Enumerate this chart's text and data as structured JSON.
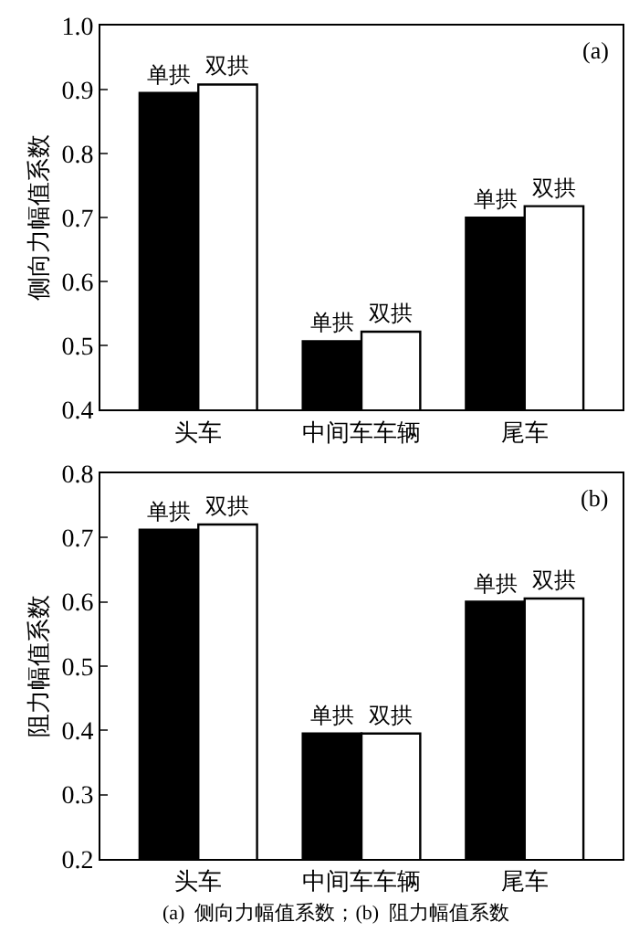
{
  "chart_data": [
    {
      "type": "bar",
      "ylabel": "侧向力幅值系数",
      "categories": [
        "头车",
        "中间车车辆",
        "尾车"
      ],
      "ylim": [
        0.4,
        1.0
      ],
      "yticks": [
        0.4,
        0.5,
        0.6,
        0.7,
        0.8,
        0.9,
        {
          "value": 1.0,
          "label": "1.0"
        }
      ],
      "annotations": [
        "(a)"
      ],
      "series": [
        {
          "name": "单拱",
          "color": "#000000",
          "values": [
            0.895,
            0.507,
            0.7
          ]
        },
        {
          "name": "双拱",
          "color": "#ffffff",
          "values": [
            0.908,
            0.522,
            0.718
          ]
        }
      ]
    },
    {
      "type": "bar",
      "ylabel": "阻力幅值系数",
      "categories": [
        "头车",
        "中间车车辆",
        "尾车"
      ],
      "ylim": [
        0.2,
        0.8
      ],
      "yticks": [
        0.2,
        0.3,
        0.4,
        0.5,
        0.6,
        0.7,
        0.8
      ],
      "annotations": [
        "(b)",
        "(a)  侧向力幅值系数；(b)  阻力幅值系数"
      ],
      "series": [
        {
          "name": "单拱",
          "color": "#000000",
          "values": [
            0.712,
            0.395,
            0.6
          ]
        },
        {
          "name": "双拱",
          "color": "#ffffff",
          "values": [
            0.72,
            0.395,
            0.605
          ]
        }
      ]
    }
  ]
}
